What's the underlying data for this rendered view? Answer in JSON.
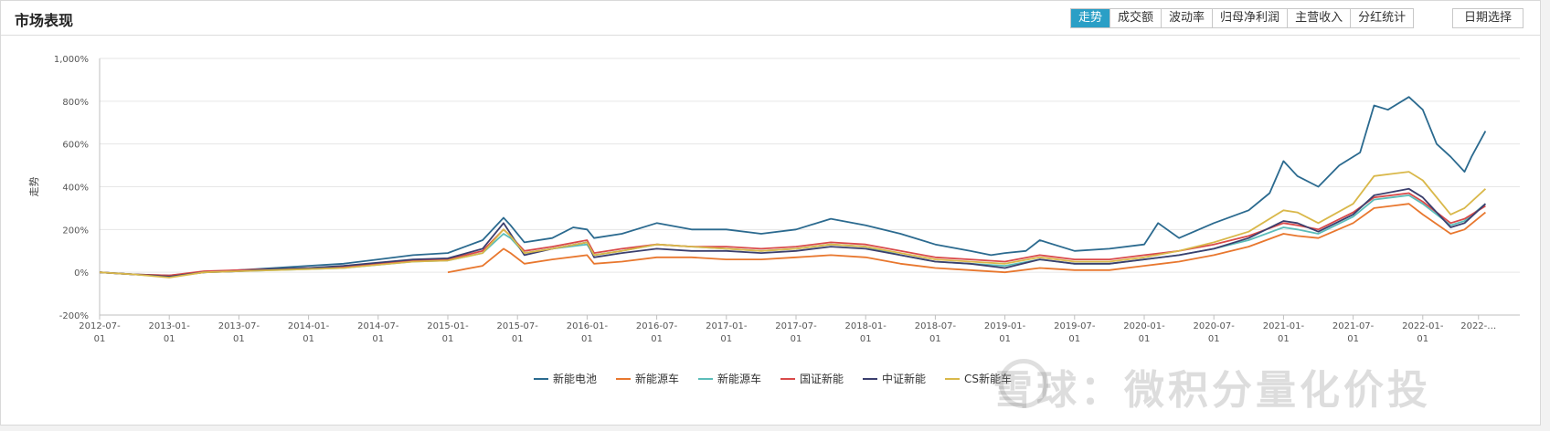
{
  "header": {
    "title": "市场表现",
    "tabs": [
      {
        "label": "走势",
        "active": true
      },
      {
        "label": "成交额",
        "active": false
      },
      {
        "label": "波动率",
        "active": false
      },
      {
        "label": "归母净利润",
        "active": false
      },
      {
        "label": "主营收入",
        "active": false
      },
      {
        "label": "分红统计",
        "active": false
      }
    ],
    "date_button": "日期选择"
  },
  "watermark": "雪球：微积分量化价投",
  "colors": {
    "accent": "#2a9fc6"
  },
  "chart_data": {
    "type": "line",
    "ylabel": "走势",
    "ylim": [
      -200,
      1000
    ],
    "yticks": [
      -200,
      0,
      200,
      400,
      600,
      800,
      1000
    ],
    "yticklabels": [
      "-200%",
      "0%",
      "200%",
      "400%",
      "600%",
      "800%",
      "1,000%"
    ],
    "xrange": [
      2012.5,
      2022.5
    ],
    "xticks": [
      {
        "x": 2012.5,
        "l1": "2012-07-",
        "l2": "01"
      },
      {
        "x": 2013.0,
        "l1": "2013-01-",
        "l2": "01"
      },
      {
        "x": 2013.5,
        "l1": "2013-07-",
        "l2": "01"
      },
      {
        "x": 2014.0,
        "l1": "2014-01-",
        "l2": "01"
      },
      {
        "x": 2014.5,
        "l1": "2014-07-",
        "l2": "01"
      },
      {
        "x": 2015.0,
        "l1": "2015-01-",
        "l2": "01"
      },
      {
        "x": 2015.5,
        "l1": "2015-07-",
        "l2": "01"
      },
      {
        "x": 2016.0,
        "l1": "2016-01-",
        "l2": "01"
      },
      {
        "x": 2016.5,
        "l1": "2016-07-",
        "l2": "01"
      },
      {
        "x": 2017.0,
        "l1": "2017-01-",
        "l2": "01"
      },
      {
        "x": 2017.5,
        "l1": "2017-07-",
        "l2": "01"
      },
      {
        "x": 2018.0,
        "l1": "2018-01-",
        "l2": "01"
      },
      {
        "x": 2018.5,
        "l1": "2018-07-",
        "l2": "01"
      },
      {
        "x": 2019.0,
        "l1": "2019-01-",
        "l2": "01"
      },
      {
        "x": 2019.5,
        "l1": "2019-07-",
        "l2": "01"
      },
      {
        "x": 2020.0,
        "l1": "2020-01-",
        "l2": "01"
      },
      {
        "x": 2020.5,
        "l1": "2020-07-",
        "l2": "01"
      },
      {
        "x": 2021.0,
        "l1": "2021-01-",
        "l2": "01"
      },
      {
        "x": 2021.5,
        "l1": "2021-07-",
        "l2": "01"
      },
      {
        "x": 2022.0,
        "l1": "2022-01-",
        "l2": "01"
      },
      {
        "x": 2022.4,
        "l1": "2022-…",
        "l2": ""
      }
    ],
    "legend_position": "bottom",
    "series": [
      {
        "name": "新能电池",
        "color": "#2b6a8f",
        "x": [
          2012.5,
          2012.75,
          2013.0,
          2013.25,
          2013.5,
          2013.75,
          2014.0,
          2014.25,
          2014.5,
          2014.75,
          2015.0,
          2015.25,
          2015.4,
          2015.45,
          2015.55,
          2015.75,
          2015.9,
          2016.0,
          2016.05,
          2016.25,
          2016.5,
          2016.75,
          2017.0,
          2017.25,
          2017.5,
          2017.75,
          2018.0,
          2018.25,
          2018.5,
          2018.75,
          2018.9,
          2019.0,
          2019.15,
          2019.25,
          2019.5,
          2019.75,
          2020.0,
          2020.1,
          2020.25,
          2020.5,
          2020.75,
          2020.9,
          2021.0,
          2021.1,
          2021.25,
          2021.4,
          2021.55,
          2021.65,
          2021.75,
          2021.9,
          2022.0,
          2022.1,
          2022.2,
          2022.3,
          2022.35,
          2022.45
        ],
        "y": [
          0,
          -10,
          -15,
          0,
          10,
          20,
          30,
          40,
          60,
          80,
          90,
          150,
          255,
          220,
          140,
          160,
          210,
          200,
          160,
          180,
          230,
          200,
          200,
          180,
          200,
          250,
          220,
          180,
          130,
          100,
          80,
          90,
          100,
          150,
          100,
          110,
          130,
          230,
          160,
          230,
          290,
          370,
          520,
          450,
          400,
          500,
          560,
          780,
          760,
          820,
          760,
          600,
          540,
          470,
          540,
          660
        ]
      },
      {
        "name": "新能源车",
        "color": "#e8772e",
        "x": [
          2015.0,
          2015.25,
          2015.4,
          2015.45,
          2015.55,
          2015.75,
          2016.0,
          2016.05,
          2016.25,
          2016.5,
          2016.75,
          2017.0,
          2017.25,
          2017.5,
          2017.75,
          2018.0,
          2018.25,
          2018.5,
          2018.75,
          2019.0,
          2019.25,
          2019.5,
          2019.75,
          2020.0,
          2020.25,
          2020.5,
          2020.75,
          2021.0,
          2021.1,
          2021.25,
          2021.5,
          2021.65,
          2021.9,
          2022.0,
          2022.2,
          2022.3,
          2022.45
        ],
        "y": [
          0,
          30,
          110,
          90,
          40,
          60,
          80,
          40,
          50,
          70,
          70,
          60,
          60,
          70,
          80,
          70,
          40,
          20,
          10,
          0,
          20,
          10,
          10,
          30,
          50,
          80,
          120,
          180,
          170,
          160,
          230,
          300,
          320,
          270,
          180,
          200,
          280
        ]
      },
      {
        "name": "新能源车",
        "color": "#5bbdb9",
        "x": [
          2012.5,
          2012.75,
          2013.0,
          2013.25,
          2013.5,
          2013.75,
          2014.0,
          2014.25,
          2014.5,
          2014.75,
          2015.0,
          2015.25,
          2015.4,
          2015.45,
          2015.55,
          2015.75,
          2016.0,
          2016.05,
          2016.25,
          2016.5,
          2016.75,
          2017.0,
          2017.25,
          2017.5,
          2017.75,
          2018.0,
          2018.25,
          2018.5,
          2018.75,
          2019.0,
          2019.25,
          2019.5,
          2019.75,
          2020.0,
          2020.25,
          2020.5,
          2020.75,
          2021.0,
          2021.1,
          2021.25,
          2021.5,
          2021.65,
          2021.9,
          2022.0,
          2022.2,
          2022.3,
          2022.45
        ],
        "y": [
          0,
          -10,
          -20,
          0,
          5,
          10,
          15,
          20,
          35,
          50,
          55,
          90,
          180,
          160,
          90,
          110,
          130,
          80,
          100,
          130,
          120,
          110,
          100,
          110,
          130,
          120,
          80,
          50,
          40,
          30,
          60,
          40,
          40,
          60,
          80,
          110,
          150,
          210,
          200,
          180,
          260,
          340,
          360,
          320,
          220,
          240,
          320
        ]
      },
      {
        "name": "国证新能",
        "color": "#d94a4a",
        "x": [
          2012.5,
          2012.75,
          2013.0,
          2013.25,
          2013.5,
          2013.75,
          2014.0,
          2014.25,
          2014.5,
          2014.75,
          2015.0,
          2015.25,
          2015.4,
          2015.45,
          2015.55,
          2015.75,
          2016.0,
          2016.05,
          2016.25,
          2016.5,
          2016.75,
          2017.0,
          2017.25,
          2017.5,
          2017.75,
          2018.0,
          2018.25,
          2018.5,
          2018.75,
          2019.0,
          2019.25,
          2019.5,
          2019.75,
          2020.0,
          2020.25,
          2020.5,
          2020.75,
          2021.0,
          2021.1,
          2021.25,
          2021.5,
          2021.65,
          2021.9,
          2022.0,
          2022.2,
          2022.3,
          2022.45
        ],
        "y": [
          0,
          -10,
          -15,
          5,
          10,
          15,
          20,
          25,
          40,
          55,
          60,
          100,
          200,
          170,
          100,
          120,
          150,
          90,
          110,
          130,
          120,
          120,
          110,
          120,
          140,
          130,
          100,
          70,
          60,
          50,
          80,
          60,
          60,
          80,
          100,
          130,
          170,
          230,
          220,
          200,
          280,
          350,
          370,
          330,
          230,
          250,
          310
        ]
      },
      {
        "name": "中证新能",
        "color": "#3b3f6e",
        "x": [
          2012.5,
          2012.75,
          2013.0,
          2013.25,
          2013.5,
          2013.75,
          2014.0,
          2014.25,
          2014.5,
          2014.75,
          2015.0,
          2015.25,
          2015.4,
          2015.45,
          2015.55,
          2015.75,
          2016.0,
          2016.05,
          2016.25,
          2016.5,
          2016.75,
          2017.0,
          2017.25,
          2017.5,
          2017.75,
          2018.0,
          2018.25,
          2018.5,
          2018.75,
          2019.0,
          2019.25,
          2019.5,
          2019.75,
          2020.0,
          2020.25,
          2020.5,
          2020.75,
          2021.0,
          2021.1,
          2021.25,
          2021.5,
          2021.65,
          2021.9,
          2022.0,
          2022.2,
          2022.3,
          2022.45
        ],
        "y": [
          0,
          -10,
          -20,
          0,
          5,
          15,
          20,
          30,
          45,
          60,
          65,
          110,
          230,
          180,
          80,
          110,
          140,
          70,
          90,
          110,
          100,
          100,
          90,
          100,
          120,
          110,
          80,
          50,
          40,
          20,
          60,
          40,
          40,
          60,
          80,
          110,
          160,
          240,
          230,
          190,
          270,
          360,
          390,
          350,
          210,
          230,
          320
        ]
      },
      {
        "name": "CS新能车",
        "color": "#d9b84a",
        "x": [
          2012.5,
          2012.75,
          2013.0,
          2013.25,
          2013.5,
          2013.75,
          2014.0,
          2014.25,
          2014.5,
          2014.75,
          2015.0,
          2015.25,
          2015.4,
          2015.45,
          2015.55,
          2015.75,
          2016.0,
          2016.05,
          2016.25,
          2016.5,
          2016.75,
          2017.0,
          2017.25,
          2017.5,
          2017.75,
          2018.0,
          2018.25,
          2018.5,
          2018.75,
          2019.0,
          2019.25,
          2019.5,
          2019.75,
          2020.0,
          2020.25,
          2020.5,
          2020.75,
          2021.0,
          2021.1,
          2021.25,
          2021.5,
          2021.65,
          2021.9,
          2022.0,
          2022.2,
          2022.3,
          2022.45
        ],
        "y": [
          0,
          -10,
          -25,
          0,
          5,
          10,
          15,
          20,
          35,
          50,
          55,
          90,
          200,
          170,
          90,
          110,
          140,
          80,
          100,
          130,
          120,
          110,
          100,
          110,
          130,
          120,
          90,
          60,
          50,
          40,
          70,
          50,
          50,
          70,
          100,
          140,
          190,
          290,
          280,
          230,
          320,
          450,
          470,
          430,
          270,
          300,
          390
        ]
      }
    ]
  }
}
